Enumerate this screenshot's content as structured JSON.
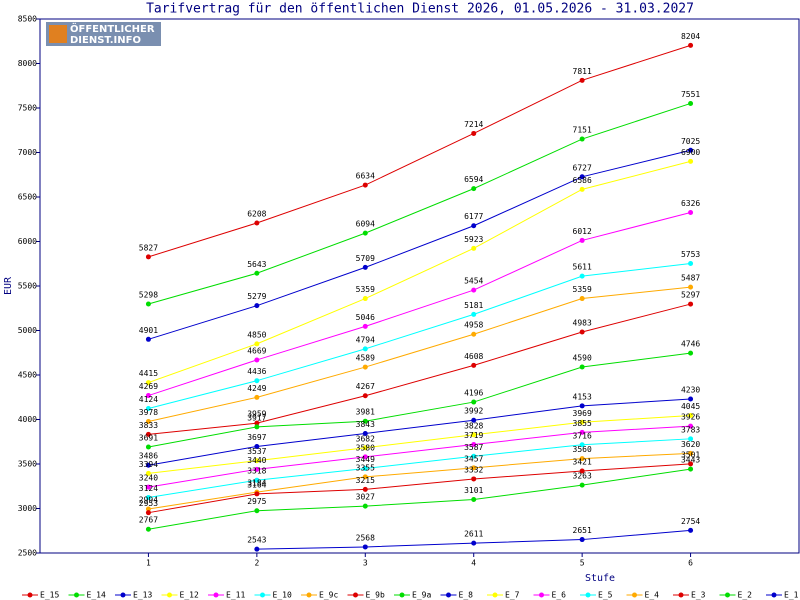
{
  "chart_data": {
    "type": "line",
    "title": "Tarifvertrag für den öffentlichen Dienst 2026, 01.05.2026 - 31.03.2027",
    "logo": [
      "ÖFFENTLICHER",
      "DIENST.INFO"
    ],
    "x_label": "Stufe",
    "y_label": "EUR",
    "x": [
      1,
      2,
      3,
      4,
      5,
      6
    ],
    "xlim": [
      0,
      7
    ],
    "xticks": [
      1,
      2,
      3,
      4,
      5,
      6
    ],
    "ylim": [
      2500,
      8500
    ],
    "yticks": [
      2500,
      3000,
      3500,
      4000,
      4500,
      5000,
      5500,
      6000,
      6500,
      7000,
      7500,
      8000,
      8500
    ],
    "grid": false,
    "series": [
      {
        "name": "E_15",
        "color": "#dd0000",
        "values": [
          5827,
          6208,
          6634,
          7214,
          7811,
          8204
        ]
      },
      {
        "name": "E_14",
        "color": "#00dd00",
        "values": [
          5298,
          5643,
          6094,
          6594,
          7151,
          7551
        ]
      },
      {
        "name": "E_13",
        "color": "#0000cc",
        "values": [
          4901,
          5279,
          5709,
          6177,
          6727,
          7025
        ]
      },
      {
        "name": "E_12",
        "color": "#ffff00",
        "values": [
          4415,
          4850,
          5359,
          5923,
          6586,
          6900
        ]
      },
      {
        "name": "E_11",
        "color": "#ff00ff",
        "values": [
          4269,
          4669,
          5046,
          5454,
          6012,
          6326
        ]
      },
      {
        "name": "E_10",
        "color": "#00ffff",
        "values": [
          4124,
          4436,
          4794,
          5181,
          5611,
          5753
        ]
      },
      {
        "name": "E_9c",
        "color": "#ffaa00",
        "values": [
          3978,
          4249,
          4589,
          4958,
          5359,
          5487
        ]
      },
      {
        "name": "E_9b",
        "color": "#dd0000",
        "values": [
          3833,
          3959,
          4267,
          4608,
          4983,
          5297
        ]
      },
      {
        "name": "E_9a",
        "color": "#00dd00",
        "values": [
          3691,
          3917,
          3981,
          4196,
          4590,
          4746
        ]
      },
      {
        "name": "E_8",
        "color": "#0000cc",
        "values": [
          3486,
          3697,
          3843,
          3992,
          4153,
          4230
        ]
      },
      {
        "name": "E_7",
        "color": "#ffff00",
        "values": [
          3394,
          3537,
          3682,
          3828,
          3969,
          4045
        ]
      },
      {
        "name": "E_6",
        "color": "#ff00ff",
        "values": [
          3240,
          3440,
          3580,
          3719,
          3855,
          3926
        ]
      },
      {
        "name": "E_5",
        "color": "#00ffff",
        "values": [
          3124,
          3318,
          3449,
          3587,
          3716,
          3783
        ]
      },
      {
        "name": "E_4",
        "color": "#ffaa00",
        "values": [
          2994,
          3184,
          3355,
          3457,
          3560,
          3620
        ]
      },
      {
        "name": "E_3",
        "color": "#dd0000",
        "values": [
          2953,
          3164,
          3215,
          3332,
          3421,
          3501
        ]
      },
      {
        "name": "E_2",
        "color": "#00dd00",
        "values": [
          2767,
          2975,
          3027,
          3101,
          3263,
          3443
        ]
      },
      {
        "name": "E_1",
        "color": "#0000cc",
        "values": [
          null,
          2543,
          2568,
          2611,
          2651,
          2754
        ]
      }
    ]
  }
}
